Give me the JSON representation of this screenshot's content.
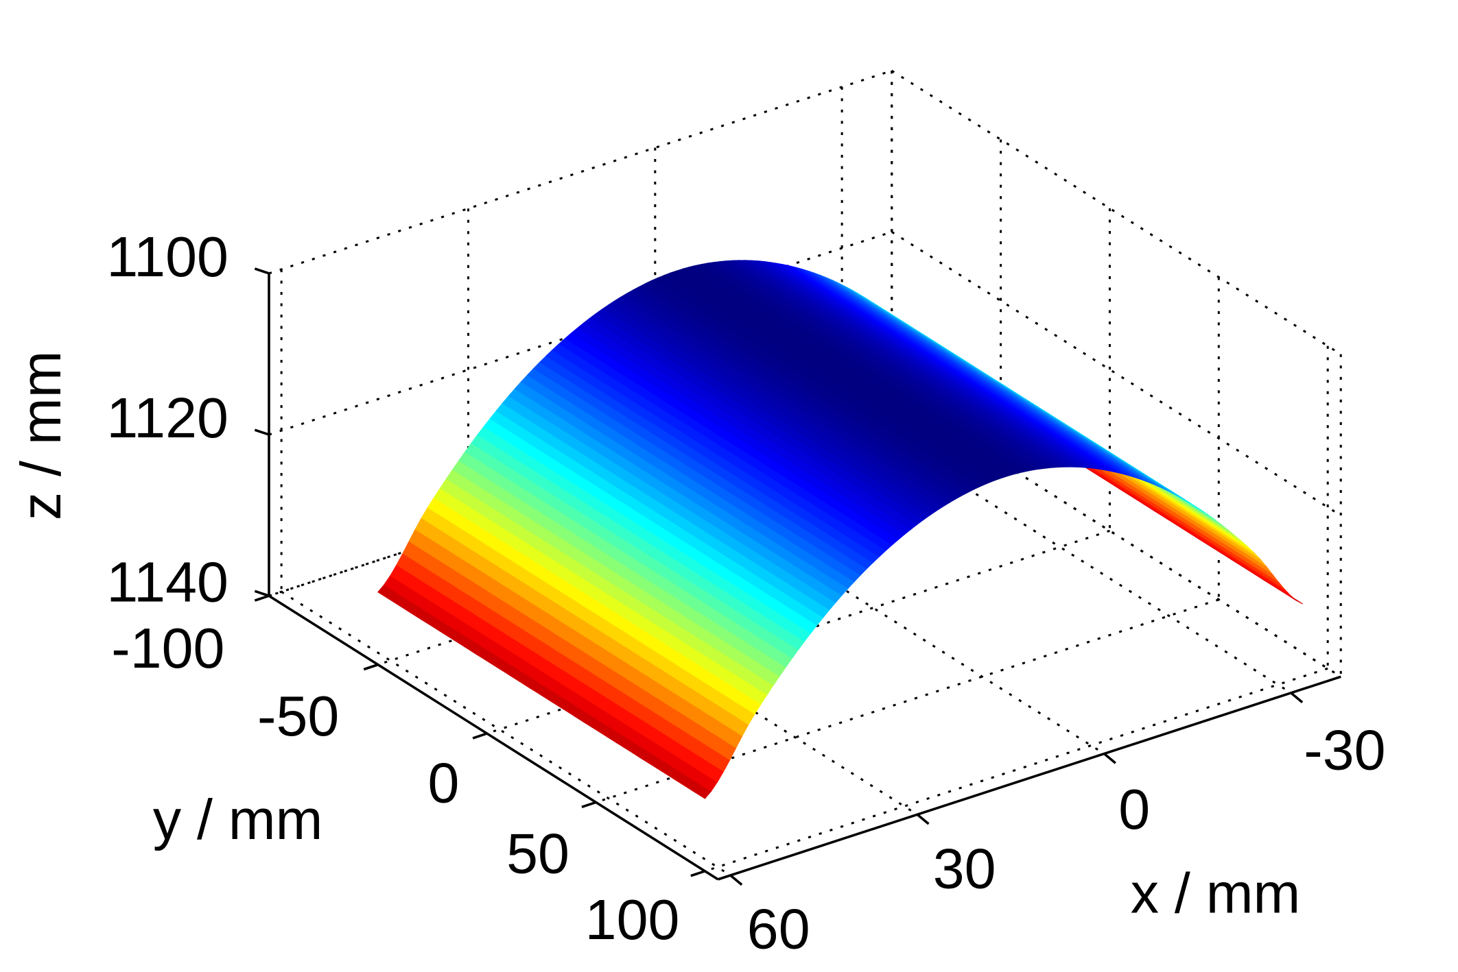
{
  "chart_data": {
    "type": "surface",
    "title": "",
    "xlabel": "x / mm",
    "ylabel": "y / mm",
    "zlabel": "z / mm",
    "xlim": [
      -38,
      62
    ],
    "ylim": [
      -100,
      106
    ],
    "zlim": [
      1100,
      1140
    ],
    "z_axis_reversed": true,
    "x_ticks": [
      60,
      30,
      0,
      -30
    ],
    "x_tick_labels": [
      "60",
      "30",
      "0",
      "-30"
    ],
    "y_ticks": [
      -100,
      -50,
      0,
      50,
      100
    ],
    "y_tick_labels": [
      "-100",
      "-50",
      "0",
      "50",
      "100"
    ],
    "z_ticks": [
      1100,
      1120,
      1140
    ],
    "z_tick_labels": [
      "1100",
      "1120",
      "1140"
    ],
    "grid": true,
    "grid_style": "dotted",
    "colormap": "jet",
    "surface": {
      "y_range": [
        -50,
        100
      ],
      "x": [
        -34,
        -26,
        -18,
        -10,
        -2,
        6,
        14,
        22,
        30,
        38,
        46,
        54,
        62
      ],
      "z": [
        1131.0,
        1122.5,
        1115.5,
        1110.1,
        1106.3,
        1104.0,
        1103.2,
        1104.0,
        1106.3,
        1110.1,
        1115.5,
        1122.5,
        1131.0
      ]
    }
  }
}
